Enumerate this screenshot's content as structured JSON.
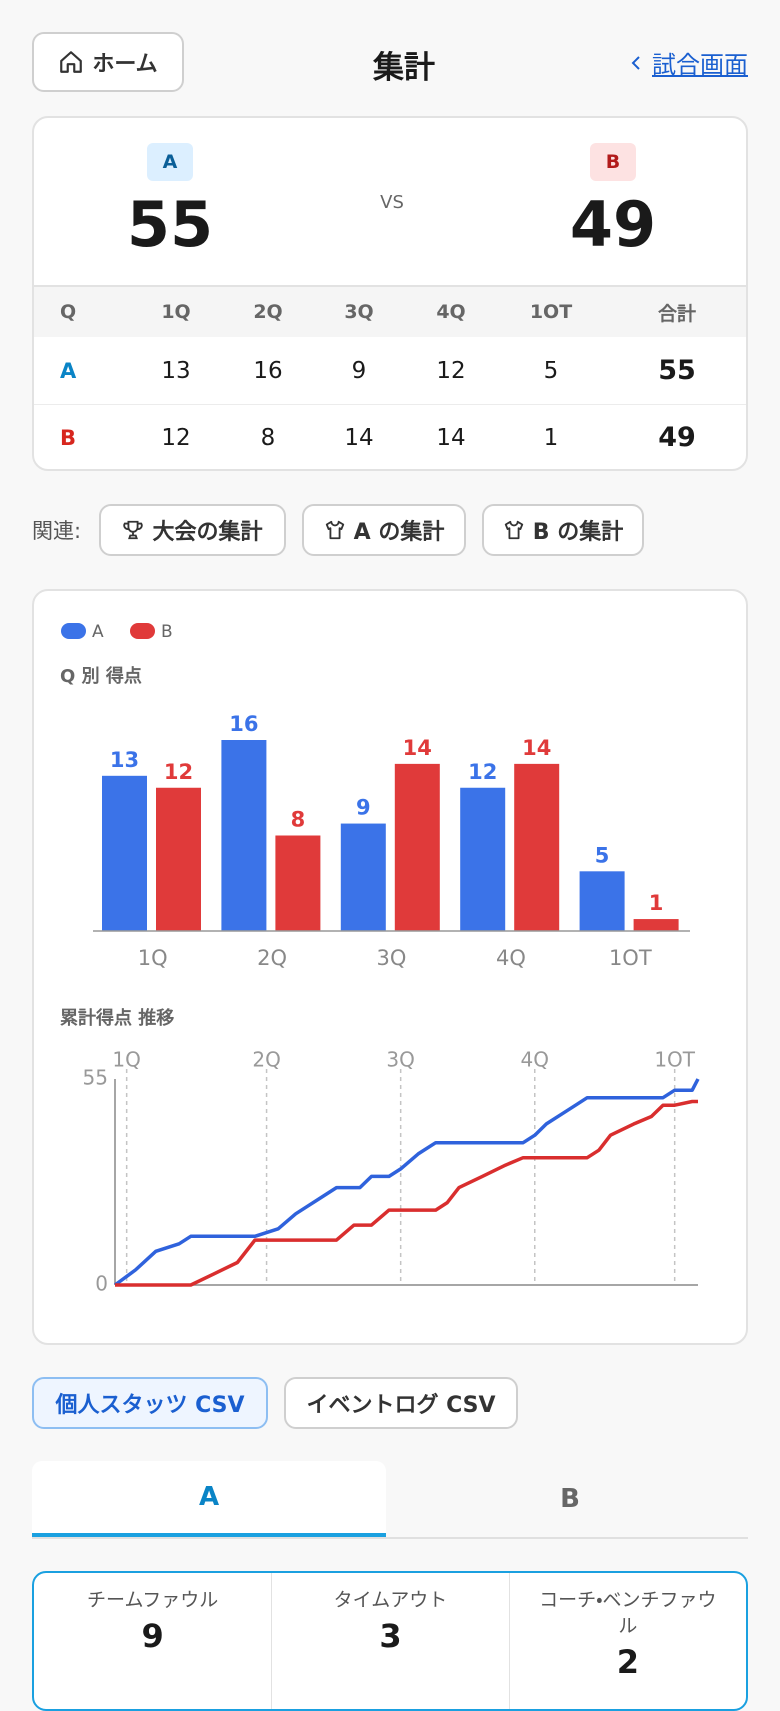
{
  "header": {
    "home": "ホーム",
    "title": "集計",
    "back": "試合画面"
  },
  "score": {
    "team_a": "A",
    "score_a": 55,
    "vs": "VS",
    "team_b": "B",
    "score_b": 49
  },
  "quarter_table": {
    "header": [
      "Q",
      "1Q",
      "2Q",
      "3Q",
      "4Q",
      "1OT",
      "合計"
    ],
    "rows": [
      [
        "A",
        13,
        16,
        9,
        12,
        5,
        55
      ],
      [
        "B",
        12,
        8,
        14,
        14,
        1,
        49
      ]
    ]
  },
  "related": {
    "label": "関連:",
    "links": [
      "大会の集計",
      "A の集計",
      "B の集計"
    ]
  },
  "chart_data": [
    {
      "type": "bar",
      "title": "Q 別 得点",
      "categories": [
        "1Q",
        "2Q",
        "3Q",
        "4Q",
        "1OT"
      ],
      "series": [
        {
          "name": "A",
          "color": "#3b73e8",
          "values": [
            13,
            16,
            9,
            12,
            5
          ]
        },
        {
          "name": "B",
          "color": "#e03a3a",
          "values": [
            12,
            8,
            14,
            14,
            1
          ]
        }
      ],
      "ylim": [
        0,
        16
      ]
    },
    {
      "type": "line",
      "title": "累計得点 推移",
      "xlim": [
        0,
        100
      ],
      "ylim": [
        0,
        55
      ],
      "yticks": [
        0,
        55
      ],
      "xticks": [
        {
          "value": 2,
          "label": "1Q"
        },
        {
          "value": 26,
          "label": "2Q"
        },
        {
          "value": 49,
          "label": "3Q"
        },
        {
          "value": 72,
          "label": "4Q"
        },
        {
          "value": 96,
          "label": "1OT"
        }
      ],
      "series": [
        {
          "color": "#2f62dc",
          "x": [
            0,
            3.5,
            7,
            11,
            13,
            24,
            28,
            31,
            33,
            35,
            38,
            42,
            44,
            47,
            49,
            52,
            55,
            70,
            72,
            74,
            77,
            79,
            81,
            94,
            96,
            99,
            100
          ],
          "values": [
            0,
            4,
            9,
            11,
            13,
            13,
            15,
            19,
            21,
            23,
            26,
            26,
            29,
            29,
            31,
            35,
            38,
            38,
            40,
            43,
            46,
            48,
            50,
            50,
            52,
            52,
            55
          ]
        },
        {
          "color": "#d92e2e",
          "x": [
            0,
            13,
            17,
            21,
            24,
            38,
            41,
            44,
            47,
            55,
            57,
            59,
            63,
            67,
            70,
            81,
            83,
            85,
            89,
            92,
            94,
            96,
            99,
            100
          ],
          "values": [
            0,
            0,
            3,
            6,
            12,
            12,
            16,
            16,
            20,
            20,
            22,
            26,
            29,
            32,
            34,
            34,
            36,
            40,
            43,
            45,
            48,
            48,
            49,
            49
          ]
        }
      ]
    }
  ],
  "export_buttons": [
    "個人スタッツ CSV",
    "イベントログ CSV"
  ],
  "tabs": [
    "A",
    "B"
  ],
  "team_stats": [
    {
      "label": "チームファウル",
      "value": 9
    },
    {
      "label": "タイムアウト",
      "value": 3
    },
    {
      "label": "コーチ・ベンチファウル",
      "value": 2
    }
  ]
}
